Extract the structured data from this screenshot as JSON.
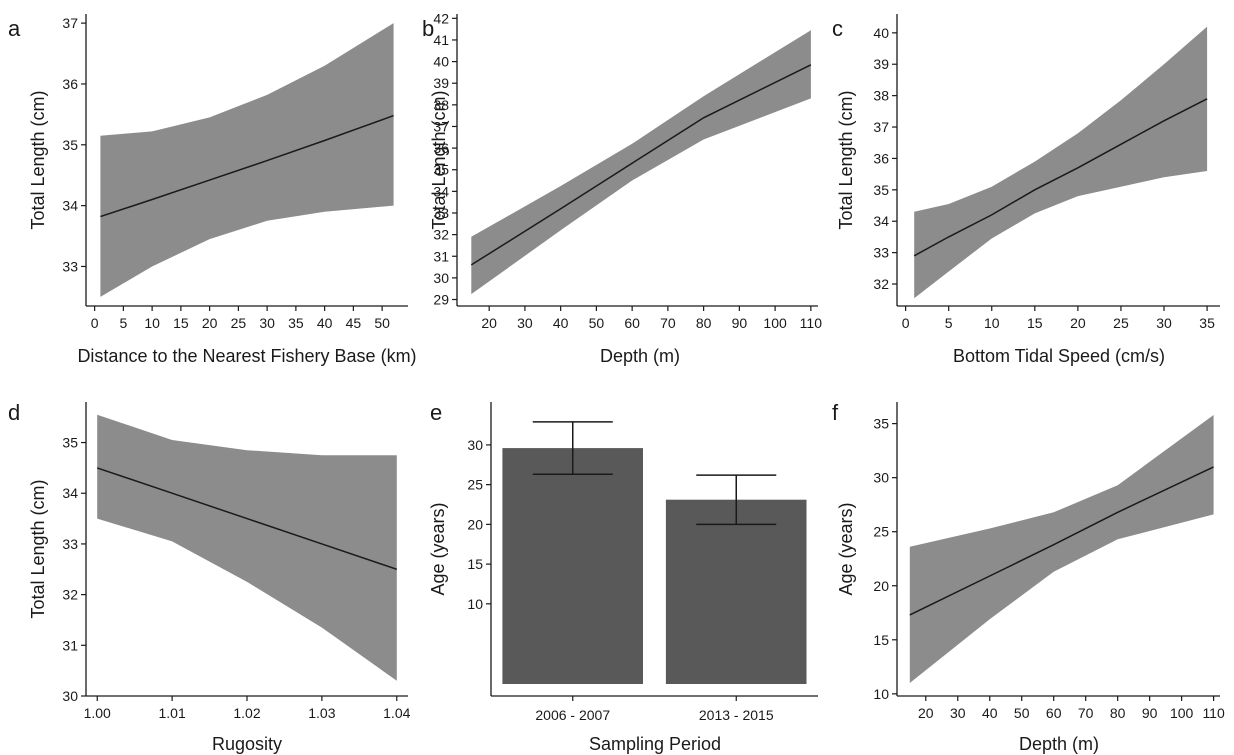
{
  "chart_data": [
    {
      "id": "a",
      "panel_label": "a",
      "type": "line",
      "xlabel": "Distance to the Nearest Fishery Base (km)",
      "ylabel": "Total Length (cm)",
      "xlim": [
        -1.5,
        54.5
      ],
      "ylim": [
        32.35,
        37.15
      ],
      "xticks": [
        0,
        5,
        10,
        15,
        20,
        25,
        30,
        35,
        40,
        45,
        50
      ],
      "xtick_labels": [
        "0",
        "5",
        "10",
        "15",
        "20",
        "25",
        "30",
        "35",
        "40",
        "45",
        "50"
      ],
      "yticks": [
        33,
        34,
        35,
        36,
        37
      ],
      "ytick_labels": [
        "33",
        "34",
        "35",
        "36",
        "37"
      ],
      "series": [
        {
          "x": [
            1,
            10,
            20,
            30,
            40,
            52
          ],
          "y": [
            33.82,
            34.1,
            34.42,
            34.74,
            35.07,
            35.48
          ],
          "ci_lower": [
            32.5,
            33.0,
            33.45,
            33.75,
            33.9,
            34.0
          ],
          "ci_upper": [
            35.15,
            35.22,
            35.45,
            35.82,
            36.3,
            37.0
          ]
        }
      ]
    },
    {
      "id": "b",
      "panel_label": "b",
      "type": "line",
      "xlabel": "Depth (m)",
      "ylabel": "Total Length (cm)",
      "xlim": [
        11,
        112
      ],
      "ylim": [
        28.7,
        42.2
      ],
      "xticks": [
        20,
        30,
        40,
        50,
        60,
        70,
        80,
        90,
        100,
        110
      ],
      "xtick_labels": [
        "20",
        "30",
        "40",
        "50",
        "60",
        "70",
        "80",
        "90",
        "100",
        "110"
      ],
      "yticks": [
        29,
        30,
        31,
        32,
        33,
        34,
        35,
        36,
        37,
        38,
        39,
        40,
        41,
        42
      ],
      "ytick_labels": [
        "29",
        "30",
        "31",
        "32",
        "33",
        "34",
        "35",
        "36",
        "37",
        "38",
        "39",
        "40",
        "41",
        "42"
      ],
      "series": [
        {
          "x": [
            15,
            40,
            60,
            80,
            110
          ],
          "y": [
            30.6,
            33.2,
            35.3,
            37.4,
            39.85
          ],
          "ci_lower": [
            29.25,
            32.2,
            34.5,
            36.4,
            38.3
          ],
          "ci_upper": [
            31.9,
            34.25,
            36.2,
            38.4,
            41.45
          ]
        }
      ]
    },
    {
      "id": "c",
      "panel_label": "c",
      "type": "line",
      "xlabel": "Bottom Tidal Speed (cm/s)",
      "ylabel": "Total Length (cm)",
      "xlim": [
        -1,
        36.5
      ],
      "ylim": [
        31.3,
        40.6
      ],
      "xticks": [
        0,
        5,
        10,
        15,
        20,
        25,
        30,
        35
      ],
      "xtick_labels": [
        "0",
        "5",
        "10",
        "15",
        "20",
        "25",
        "30",
        "35"
      ],
      "yticks": [
        32,
        33,
        34,
        35,
        36,
        37,
        38,
        39,
        40
      ],
      "ytick_labels": [
        "32",
        "33",
        "34",
        "35",
        "36",
        "37",
        "38",
        "39",
        "40"
      ],
      "series": [
        {
          "x": [
            1,
            5,
            10,
            15,
            20,
            25,
            30,
            35
          ],
          "y": [
            32.9,
            33.5,
            34.2,
            35.0,
            35.7,
            36.45,
            37.2,
            37.9
          ],
          "ci_lower": [
            31.55,
            32.4,
            33.45,
            34.25,
            34.8,
            35.1,
            35.4,
            35.6
          ],
          "ci_upper": [
            34.3,
            34.55,
            35.1,
            35.9,
            36.8,
            37.85,
            39.0,
            40.2
          ]
        }
      ]
    },
    {
      "id": "d",
      "panel_label": "d",
      "type": "line",
      "xlabel": "Rugosity",
      "ylabel": "Total Length (cm)",
      "xlim": [
        0.9985,
        1.0415
      ],
      "ylim": [
        30.0,
        35.8
      ],
      "xticks": [
        1.0,
        1.01,
        1.02,
        1.03,
        1.04
      ],
      "xtick_labels": [
        "1.00",
        "1.01",
        "1.02",
        "1.03",
        "1.04"
      ],
      "yticks": [
        30,
        31,
        32,
        33,
        34,
        35
      ],
      "ytick_labels": [
        "30",
        "31",
        "32",
        "33",
        "34",
        "35"
      ],
      "series": [
        {
          "x": [
            1.0,
            1.01,
            1.02,
            1.03,
            1.04
          ],
          "y": [
            34.5,
            34.0,
            33.5,
            33.0,
            32.5
          ],
          "ci_lower": [
            33.5,
            33.05,
            32.25,
            31.35,
            30.3
          ],
          "ci_upper": [
            35.55,
            35.05,
            34.85,
            34.75,
            34.75
          ]
        }
      ]
    },
    {
      "id": "e",
      "panel_label": "e",
      "type": "bar",
      "xlabel": "Sampling Period",
      "ylabel": "Age (years)",
      "ylim": [
        -1.6,
        35.4
      ],
      "yticks": [
        10,
        15,
        20,
        25,
        30
      ],
      "ytick_labels": [
        "10",
        "15",
        "20",
        "25",
        "30"
      ],
      "categories": [
        "2006 - 2007",
        "2013 - 2015"
      ],
      "values": [
        29.6,
        23.1
      ],
      "error_low": [
        26.3,
        20.0
      ],
      "error_high": [
        32.9,
        26.2
      ],
      "colors": {
        "bar": "#595959"
      }
    },
    {
      "id": "f",
      "panel_label": "f",
      "type": "line",
      "xlabel": "Depth (m)",
      "ylabel": "Age (years)",
      "xlim": [
        11,
        112
      ],
      "ylim": [
        9.8,
        37.0
      ],
      "xticks": [
        20,
        30,
        40,
        50,
        60,
        70,
        80,
        90,
        100,
        110
      ],
      "xtick_labels": [
        "20",
        "30",
        "40",
        "50",
        "60",
        "70",
        "80",
        "90",
        "100",
        "110"
      ],
      "yticks": [
        10,
        15,
        20,
        25,
        30,
        35
      ],
      "ytick_labels": [
        "10",
        "15",
        "20",
        "25",
        "30",
        "35"
      ],
      "series": [
        {
          "x": [
            15,
            40,
            60,
            80,
            110
          ],
          "y": [
            17.3,
            20.9,
            23.8,
            26.8,
            31.0
          ],
          "ci_lower": [
            11.0,
            16.9,
            21.3,
            24.3,
            26.6
          ],
          "ci_upper": [
            23.6,
            25.3,
            26.8,
            29.3,
            35.8
          ]
        }
      ]
    }
  ],
  "colors": {
    "band": "#8c8c8c",
    "line": "#1a1a1a",
    "axis": "#1a1a1a",
    "text": "#1a1a1a"
  }
}
